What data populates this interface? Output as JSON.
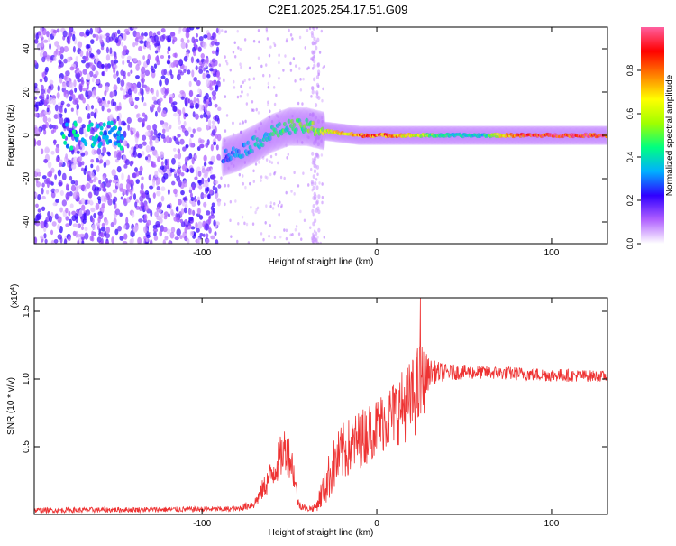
{
  "title": "C2E1.2025.254.17.51.G09",
  "chart_data": [
    {
      "type": "heatmap",
      "name": "spectrogram",
      "xlabel": "Height of straight line (km)",
      "ylabel": "Frequency (Hz)",
      "xlim": [
        -196,
        132
      ],
      "ylim": [
        -50,
        50
      ],
      "xticks": [
        -100,
        0,
        100
      ],
      "xtick_labels": [
        "-100",
        "0",
        "100"
      ],
      "yticks": [
        -40,
        -20,
        0,
        20,
        40
      ],
      "ytick_labels": [
        "-40",
        "-20",
        "0",
        "20",
        "40"
      ],
      "colorbar": {
        "label": "Normalized spectral amplitude",
        "range": [
          0,
          1
        ],
        "ticks": [
          0.0,
          0.2,
          0.4,
          0.6,
          0.8
        ],
        "tick_labels": [
          "0.0",
          "0.2",
          "0.4",
          "0.6",
          "0.8"
        ],
        "colormap": [
          "#ffffff",
          "#b060ff",
          "#3000ff",
          "#00b0ff",
          "#00ff80",
          "#a0ff00",
          "#ffff00",
          "#ff8000",
          "#ff0000",
          "#ff60a0"
        ]
      },
      "ridge": {
        "description_points_x": [
          -88,
          -80,
          -70,
          -60,
          -50,
          -40,
          -35,
          -30,
          -20,
          -10,
          0,
          20,
          40,
          60,
          80,
          100,
          132
        ],
        "description_points_y": [
          -10,
          -8,
          -4,
          1,
          4,
          4,
          3,
          2,
          1,
          0,
          0,
          0,
          0,
          0,
          0,
          0,
          0
        ],
        "amplitude": [
          0.3,
          0.35,
          0.4,
          0.45,
          0.5,
          0.55,
          0.6,
          0.65,
          0.75,
          0.85,
          0.9,
          0.7,
          0.45,
          0.4,
          0.95,
          0.98,
          0.98
        ]
      },
      "noise_region_x": [
        -196,
        -90
      ],
      "noise_amplitude": 0.2
    },
    {
      "type": "line",
      "name": "snr",
      "xlabel": "Height of straight line (km)",
      "ylabel": "SNR (10 * v/v)",
      "scale_label": "(x10",
      "scale_exp": "4",
      "scale_close": ")",
      "xlim": [
        -196,
        132
      ],
      "ylim": [
        0,
        1.6
      ],
      "xticks": [
        -100,
        0,
        100
      ],
      "xtick_labels": [
        "-100",
        "0",
        "100"
      ],
      "yticks": [
        0.5,
        1.0,
        1.5
      ],
      "ytick_labels": [
        "0.5",
        "1.0",
        "1.5"
      ],
      "color": "#ee3333",
      "envelope_x": [
        -196,
        -80,
        -70,
        -60,
        -52,
        -48,
        -45,
        -40,
        -35,
        -30,
        -25,
        -20,
        -10,
        0,
        10,
        20,
        25,
        30,
        40,
        60,
        80,
        100,
        132
      ],
      "envelope_mean": [
        0.03,
        0.04,
        0.08,
        0.3,
        0.5,
        0.35,
        0.08,
        0.04,
        0.05,
        0.2,
        0.35,
        0.45,
        0.55,
        0.65,
        0.75,
        0.85,
        0.95,
        1.05,
        1.05,
        1.05,
        1.04,
        1.03,
        1.02
      ],
      "envelope_spread": [
        0.02,
        0.02,
        0.04,
        0.12,
        0.18,
        0.14,
        0.04,
        0.02,
        0.03,
        0.15,
        0.2,
        0.22,
        0.22,
        0.22,
        0.25,
        0.3,
        0.35,
        0.1,
        0.06,
        0.05,
        0.05,
        0.05,
        0.04
      ],
      "peak": {
        "x": 25,
        "y": 1.6
      }
    }
  ]
}
